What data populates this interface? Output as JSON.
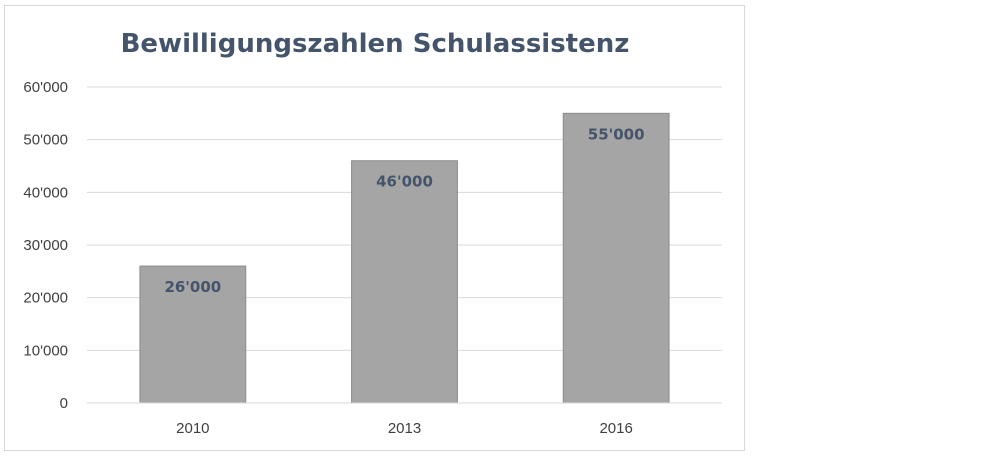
{
  "chart_data": {
    "type": "bar",
    "title": "Bewilligungszahlen Schulassistenz",
    "xlabel": "",
    "ylabel": "",
    "categories": [
      "2010",
      "2013",
      "2016"
    ],
    "values": [
      26000,
      46000,
      55000
    ],
    "data_labels": [
      "26'000",
      "46'000",
      "55'000"
    ],
    "ylim": [
      0,
      60000
    ],
    "yticks": [
      0,
      10000,
      20000,
      30000,
      40000,
      50000,
      60000
    ],
    "ytick_labels": [
      "0",
      "10'000",
      "20'000",
      "30'000",
      "40'000",
      "50'000",
      "60'000"
    ],
    "grid": true,
    "legend": "none",
    "colors": {
      "bar": "#a5a5a5",
      "bar_edge": "#8c8c8c",
      "grid": "#d9d9d9",
      "title": "#44546a",
      "label": "#44546a",
      "axis_text": "#404040"
    }
  }
}
